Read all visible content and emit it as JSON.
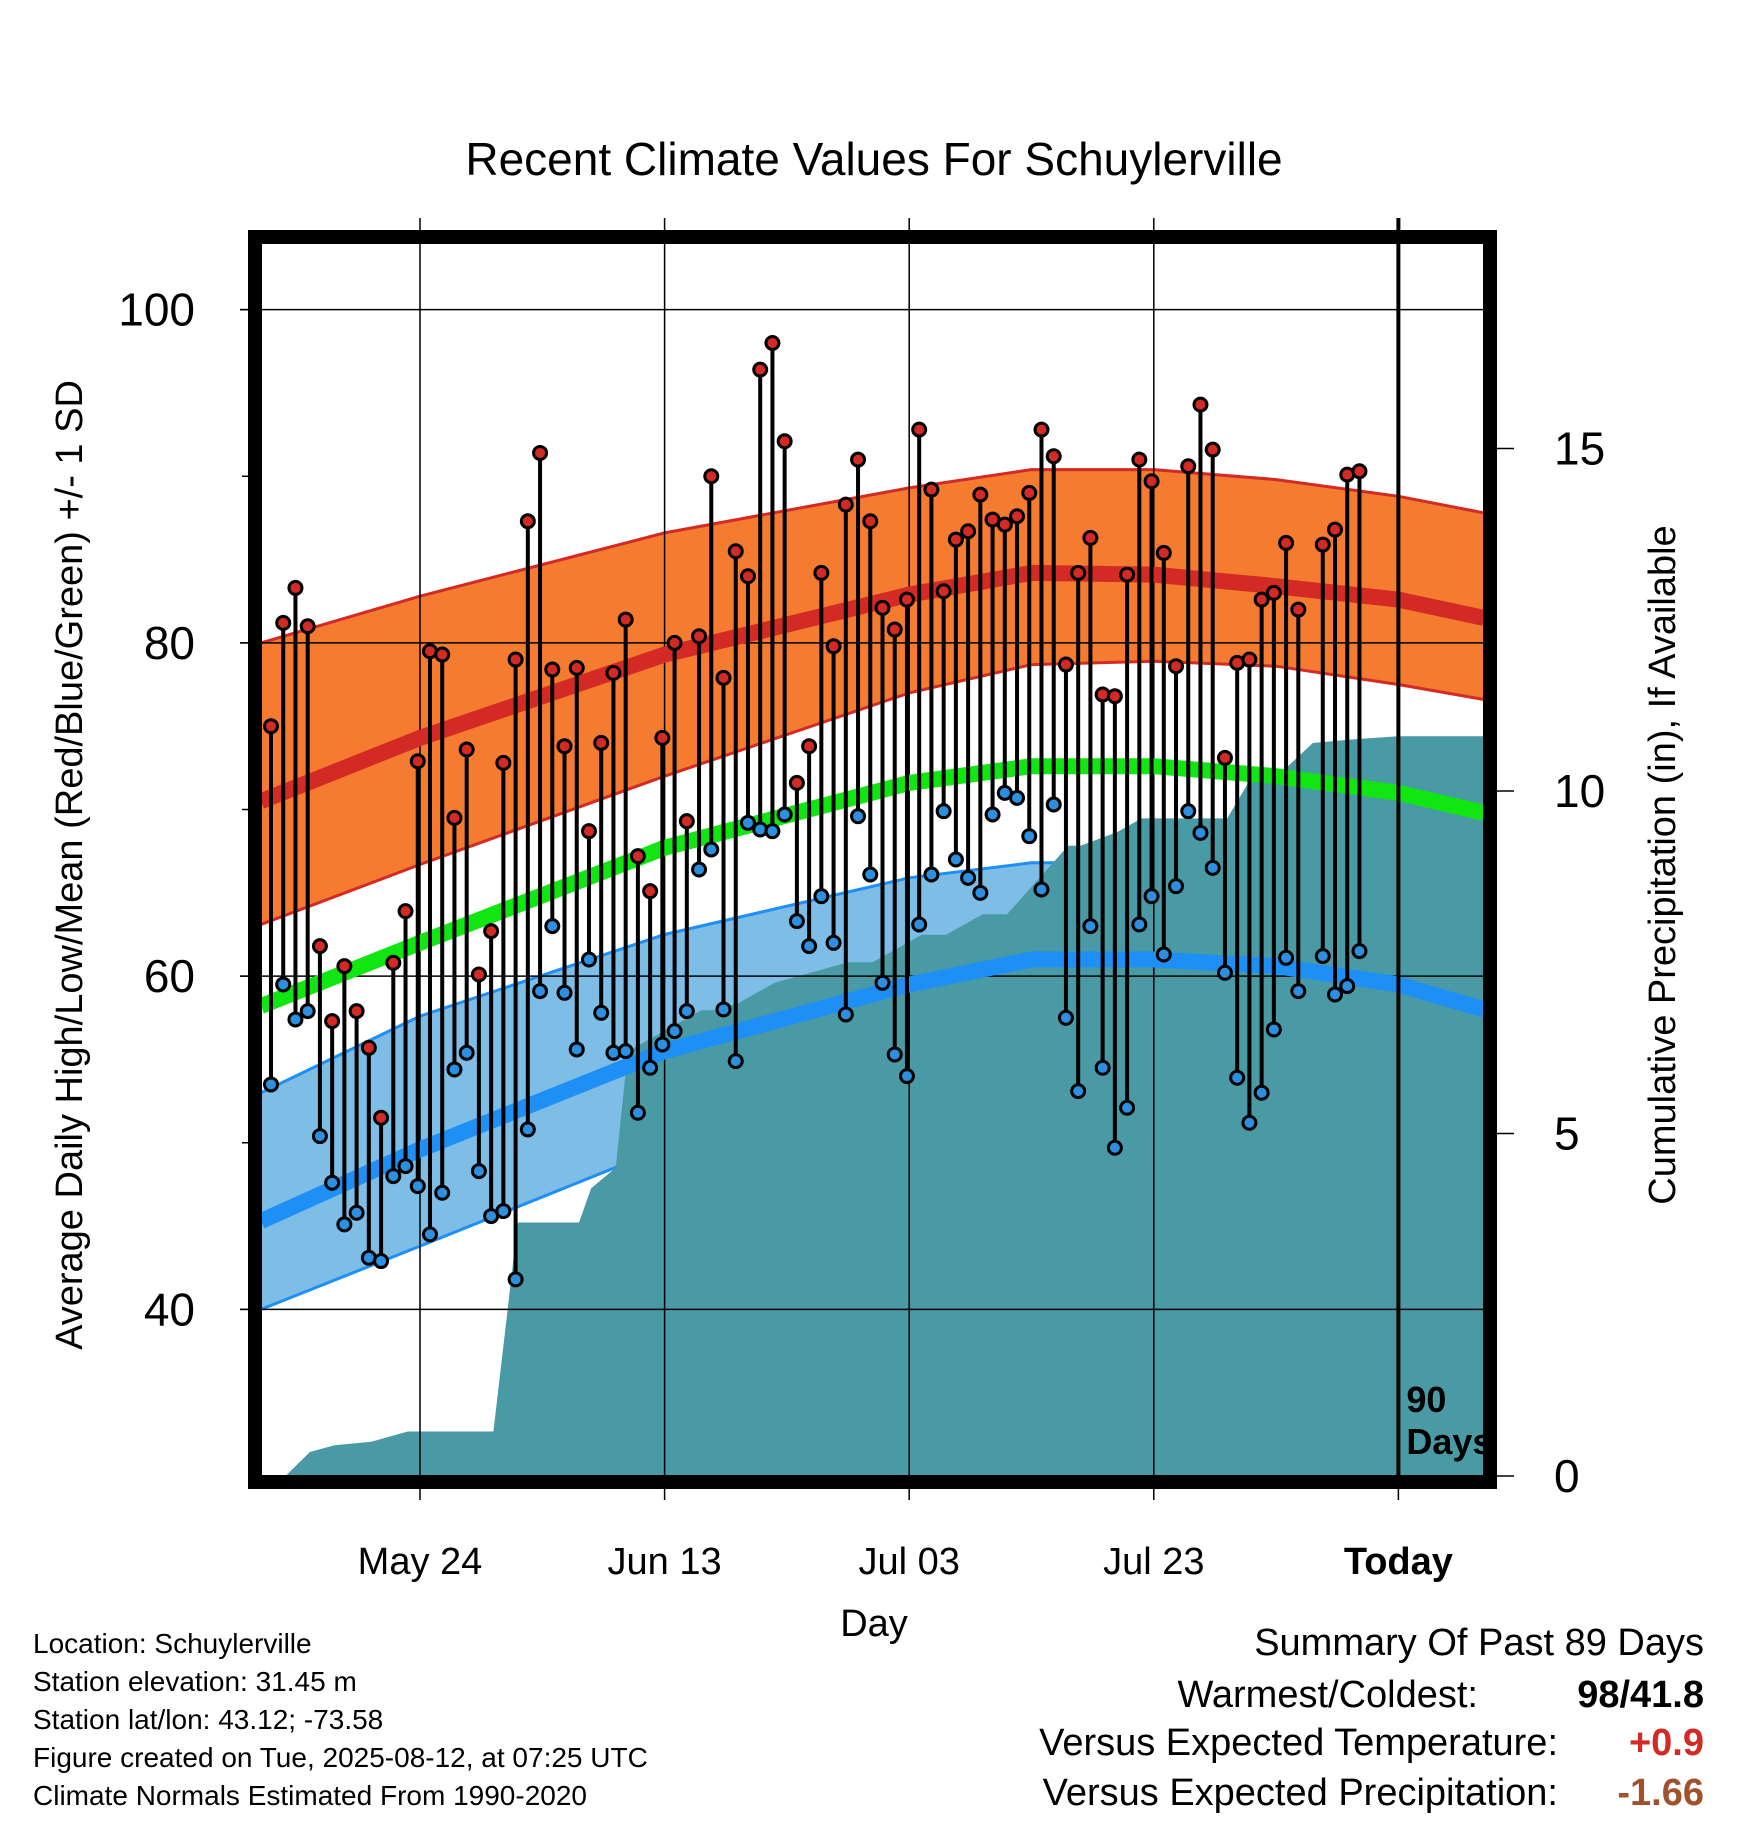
{
  "chart_data": {
    "type": "line",
    "title": "Recent Climate Values For Schuylerville",
    "xlabel": "Day",
    "ylabel": "Average Daily High/Low/Mean (Red/Blue/Green) +/- 1 SD",
    "y2label": "Cumulative Precipitation (in), If Available",
    "x_range_days": [
      -93,
      7
    ],
    "ylim": [
      30,
      104
    ],
    "y2lim": [
      0,
      18
    ],
    "x_ticks": [
      {
        "day": -80,
        "label": "May 24"
      },
      {
        "day": -60,
        "label": "Jun 13"
      },
      {
        "day": -40,
        "label": "Jul 03"
      },
      {
        "day": -20,
        "label": "Jul 23"
      },
      {
        "day": 0,
        "label": "Today"
      }
    ],
    "y_ticks": [
      40,
      60,
      80,
      100
    ],
    "y_minor_ticks": [
      50,
      70,
      90
    ],
    "y2_ticks": [
      0,
      5,
      10,
      15
    ],
    "today_marker_label": [
      "90",
      "Days"
    ],
    "colors": {
      "high_band": "#f47b2f",
      "high_line": "#d42a25",
      "low_band": "#7dbde6",
      "low_line": "#1e8ff5",
      "mean_line": "#12e612",
      "precip": "#4a9aa5",
      "high_dot": "#d42a25",
      "low_dot": "#2c8fe0"
    },
    "normals": {
      "days": [
        -93,
        -80,
        -60,
        -40,
        -30,
        -20,
        -10,
        0,
        7
      ],
      "high_mean": [
        70.5,
        74.3,
        79.3,
        82.9,
        84.2,
        84.1,
        83.4,
        82.6,
        81.5
      ],
      "high_upper": [
        80.0,
        82.8,
        86.6,
        89.3,
        90.4,
        90.4,
        89.8,
        88.8,
        87.8
      ],
      "high_lower": [
        63.1,
        66.7,
        72.0,
        77.0,
        78.7,
        78.9,
        78.6,
        77.5,
        76.6
      ],
      "mean": [
        58.2,
        62.0,
        67.7,
        71.6,
        72.6,
        72.6,
        72.0,
        71.0,
        69.8
      ],
      "low_mean": [
        45.3,
        49.6,
        55.5,
        59.5,
        61.0,
        61.0,
        60.6,
        59.5,
        58.0
      ],
      "low_upper": [
        53.0,
        57.6,
        62.5,
        65.9,
        66.8,
        66.8,
        66.5,
        65.5,
        64.6
      ],
      "low_lower": [
        40.0,
        43.8,
        49.7,
        54.4,
        55.7,
        55.8,
        55.1,
        54.2,
        52.3
      ]
    },
    "series": [
      {
        "name": "Daily High",
        "values": [
          75,
          81.2,
          83.3,
          81,
          61.8,
          57.3,
          60.6,
          57.9,
          55.7,
          51.5,
          60.8,
          63.9,
          72.9,
          79.5,
          79.3,
          69.5,
          73.6,
          60.1,
          62.7,
          72.8,
          79,
          87.3,
          91.4,
          78.4,
          73.8,
          78.5,
          68.7,
          74,
          78.2,
          81.4,
          67.2,
          65.1,
          74.3,
          80,
          69.3,
          80.4,
          90,
          77.9,
          85.5,
          84,
          96.4,
          98,
          92.1,
          71.6,
          73.8,
          84.2,
          79.8,
          88.3,
          91,
          87.3,
          82.1,
          80.8,
          82.6,
          92.8,
          89.2,
          83.1,
          86.2,
          86.7,
          88.9,
          87.4,
          87.1,
          87.6,
          89,
          92.8,
          91.2,
          78.7,
          84.2,
          86.3,
          76.9,
          76.8,
          84.1,
          91,
          89.7,
          85.4,
          78.6,
          90.6,
          94.3,
          91.6,
          73.1,
          78.8,
          79,
          82.6,
          83,
          86,
          82,
          null,
          85.9,
          86.8,
          90.1,
          90.3
        ],
        "lows": [
          53.5,
          59.5,
          57.4,
          57.9,
          50.4,
          47.6,
          45.1,
          45.8,
          43.1,
          42.9,
          48,
          48.6,
          47.4,
          44.5,
          47,
          54.4,
          55.4,
          48.3,
          45.6,
          45.9,
          41.8,
          50.8,
          59.1,
          63,
          59,
          55.6,
          61,
          57.8,
          55.4,
          55.5,
          51.8,
          54.5,
          55.9,
          56.7,
          57.9,
          66.4,
          67.6,
          58,
          54.9,
          69.2,
          68.8,
          68.7,
          69.7,
          63.3,
          61.8,
          64.8,
          62,
          57.7,
          69.6,
          66.1,
          59.6,
          55.3,
          54,
          63.1,
          66.1,
          69.9,
          67,
          65.9,
          65,
          69.7,
          71,
          70.7,
          68.4,
          65.2,
          70.3,
          57.5,
          53.1,
          63,
          54.5,
          49.7,
          52.1,
          63.1,
          64.8,
          61.3,
          65.4,
          69.9,
          68.6,
          66.5,
          60.2,
          53.9,
          51.2,
          53,
          56.8,
          61.1,
          59.1,
          null,
          61.2,
          58.9,
          59.4,
          61.5
        ]
      }
    ],
    "precipitation": {
      "days": [
        -93,
        -91,
        -89,
        -87,
        -84,
        -81,
        -79,
        -77,
        -74,
        -72,
        -71,
        -67,
        -66,
        -64,
        -63,
        -60,
        -57,
        -56,
        -54,
        -51,
        -49,
        -45,
        -43,
        -39,
        -37,
        -34,
        -32,
        -30,
        -27,
        -26,
        -23,
        -21,
        -17,
        -14,
        -12,
        -10,
        -7,
        -4,
        0,
        7
      ],
      "values": [
        0,
        0,
        0.35,
        0.45,
        0.5,
        0.65,
        0.65,
        0.65,
        0.65,
        3.7,
        3.7,
        3.7,
        4.2,
        4.5,
        6.2,
        6.5,
        6.8,
        6.8,
        6.9,
        7.2,
        7.3,
        7.5,
        7.5,
        7.9,
        7.9,
        8.2,
        8.2,
        8.6,
        9.2,
        9.2,
        9.4,
        9.6,
        9.6,
        9.6,
        10.2,
        10.2,
        10.7,
        10.75,
        10.8,
        10.8
      ]
    }
  },
  "info": {
    "location": "Location: Schuylerville",
    "elevation": "Station elevation: 31.45 m",
    "latlon": "Station lat/lon: 43.12; -73.58",
    "created": "Figure created on Tue, 2025-08-12, at 07:25 UTC",
    "normals": "Climate Normals Estimated From 1990-2020"
  },
  "summary": {
    "heading": "Summary Of Past 89 Days",
    "warmest_label": "Warmest/Coldest:",
    "warmest_value": "98",
    "coldest_value": "41.8",
    "temp_label": "Versus Expected Temperature:",
    "temp_value": "+0.9",
    "precip_label": "Versus Expected Precipitation:",
    "precip_value": "-1.66",
    "temp_color": "#d42a25",
    "precip_color": "#a0522d"
  }
}
